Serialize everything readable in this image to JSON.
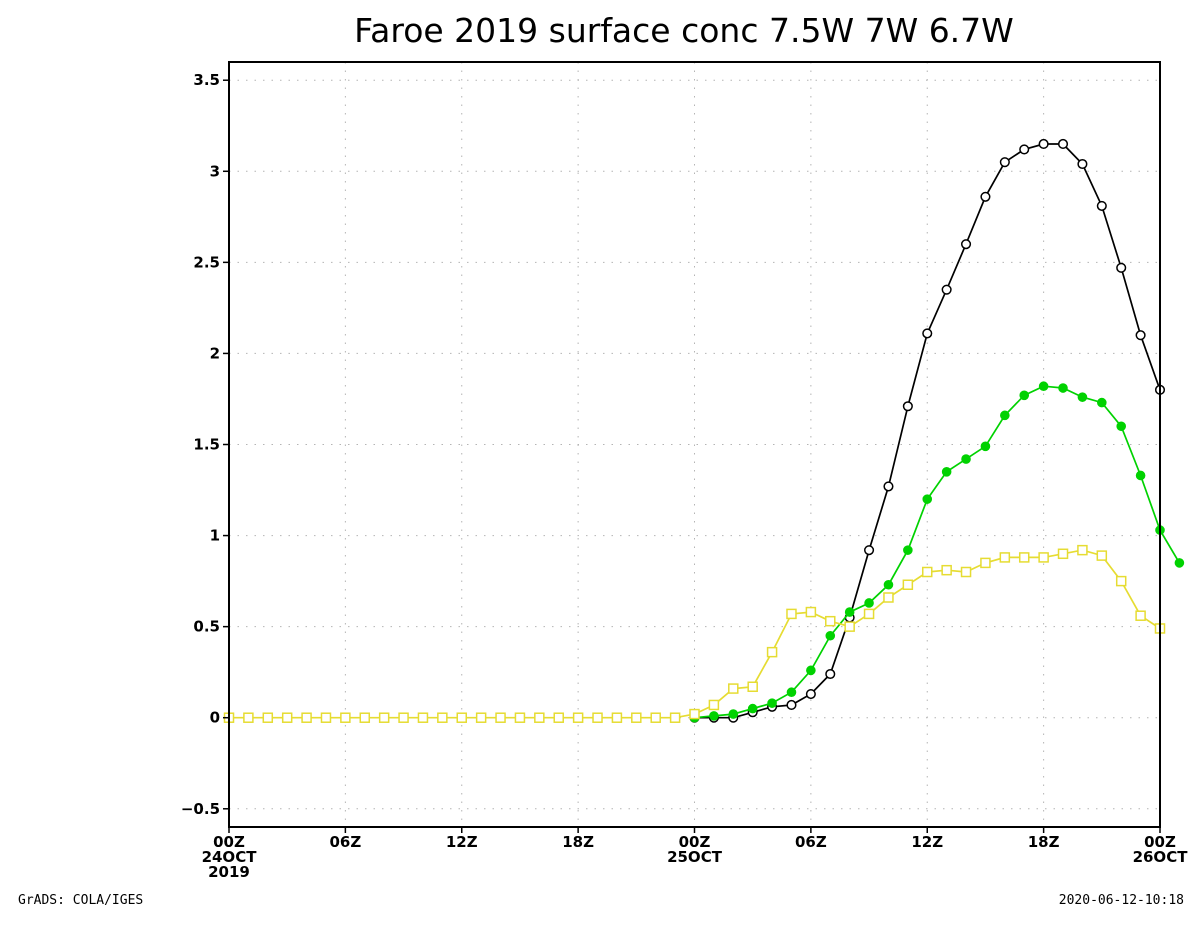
{
  "chart_data": {
    "type": "line",
    "title": "Faroe 2019 surface conc  7.5W 7W 6.7W",
    "footer_left": "GrADS: COLA/IGES",
    "footer_right": "2020-06-12-10:18",
    "ylim": [
      -0.6,
      3.6
    ],
    "y_ticks": [
      -0.5,
      0,
      0.5,
      1,
      1.5,
      2,
      2.5,
      3,
      3.5
    ],
    "y_tick_labels": [
      "−0.5",
      "0",
      "0.5",
      "1",
      "1.5",
      "2",
      "2.5",
      "3",
      "3.5"
    ],
    "x_range_hours": [
      0,
      48
    ],
    "x_ticks": [
      {
        "hour": 0,
        "lines": [
          "00Z",
          "24OCT",
          "2019"
        ]
      },
      {
        "hour": 6,
        "lines": [
          "06Z"
        ]
      },
      {
        "hour": 12,
        "lines": [
          "12Z"
        ]
      },
      {
        "hour": 18,
        "lines": [
          "18Z"
        ]
      },
      {
        "hour": 24,
        "lines": [
          "00Z",
          "25OCT"
        ]
      },
      {
        "hour": 30,
        "lines": [
          "06Z"
        ]
      },
      {
        "hour": 36,
        "lines": [
          "12Z"
        ]
      },
      {
        "hour": 42,
        "lines": [
          "18Z"
        ]
      },
      {
        "hour": 48,
        "lines": [
          "00Z",
          "26OCT"
        ]
      }
    ],
    "grid": true,
    "series": [
      {
        "color": "#000000",
        "marker": "open-circle",
        "start_hour": 24,
        "values": [
          0,
          0,
          0,
          0.03,
          0.06,
          0.07,
          0.13,
          0.24,
          0.55,
          0.92,
          1.27,
          1.71,
          2.11,
          2.35,
          2.6,
          2.86,
          3.05,
          3.12,
          3.15,
          3.15,
          3.04,
          2.81,
          2.47,
          2.1,
          1.8
        ]
      },
      {
        "color": "#00d200",
        "marker": "filled-circle",
        "start_hour": 24,
        "values": [
          0,
          0.01,
          0.02,
          0.05,
          0.08,
          0.14,
          0.26,
          0.45,
          0.58,
          0.63,
          0.73,
          0.92,
          1.2,
          1.35,
          1.42,
          1.49,
          1.66,
          1.77,
          1.82,
          1.81,
          1.76,
          1.73,
          1.6,
          1.33,
          1.03,
          0.85
        ]
      },
      {
        "color": "#e6dc32",
        "marker": "open-square",
        "start_hour": 0,
        "values": [
          0,
          0,
          0,
          0,
          0,
          0,
          0,
          0,
          0,
          0,
          0,
          0,
          0,
          0,
          0,
          0,
          0,
          0,
          0,
          0,
          0,
          0,
          0,
          0,
          0.02,
          0.07,
          0.16,
          0.17,
          0.36,
          0.57,
          0.58,
          0.53,
          0.5,
          0.57,
          0.66,
          0.73,
          0.8,
          0.81,
          0.8,
          0.85,
          0.88,
          0.88,
          0.88,
          0.9,
          0.92,
          0.89,
          0.75,
          0.56,
          0.49
        ]
      }
    ]
  }
}
